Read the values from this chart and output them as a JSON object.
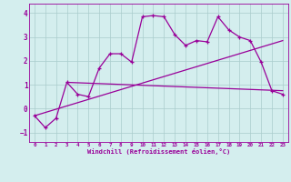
{
  "xlabel": "Windchill (Refroidissement éolien,°C)",
  "x_values": [
    0,
    1,
    2,
    3,
    4,
    5,
    6,
    7,
    8,
    9,
    10,
    11,
    12,
    13,
    14,
    15,
    16,
    17,
    18,
    19,
    20,
    21,
    22,
    23
  ],
  "line1_y": [
    -0.3,
    -0.8,
    -0.4,
    1.1,
    0.6,
    0.5,
    1.7,
    2.3,
    2.3,
    1.95,
    3.85,
    3.9,
    3.85,
    3.1,
    2.65,
    2.85,
    2.8,
    3.85,
    3.3,
    3.0,
    2.85,
    1.95,
    0.75,
    0.6
  ],
  "trend1_x": [
    0,
    23
  ],
  "trend1_y": [
    -0.3,
    2.85
  ],
  "trend2_x": [
    3,
    23
  ],
  "trend2_y": [
    1.1,
    0.75
  ],
  "bg_color": "#d4eeee",
  "line_color": "#990099",
  "grid_color": "#aacccc",
  "xlim": [
    -0.5,
    23.5
  ],
  "ylim": [
    -1.4,
    4.4
  ],
  "yticks": [
    -1,
    0,
    1,
    2,
    3,
    4
  ],
  "xticks": [
    0,
    1,
    2,
    3,
    4,
    5,
    6,
    7,
    8,
    9,
    10,
    11,
    12,
    13,
    14,
    15,
    16,
    17,
    18,
    19,
    20,
    21,
    22,
    23
  ]
}
